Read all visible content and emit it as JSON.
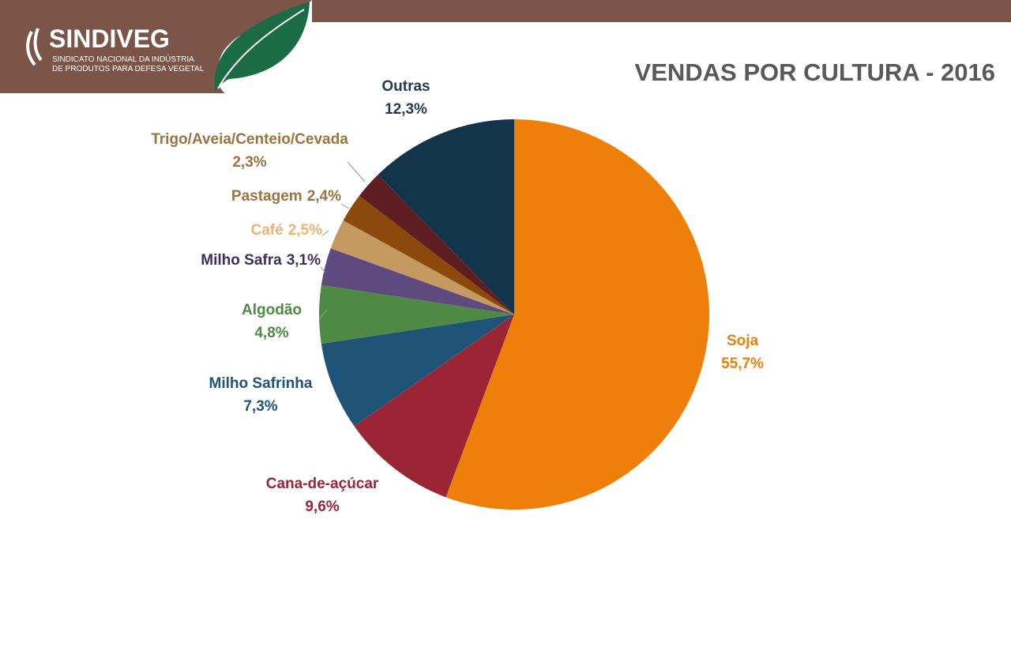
{
  "header": {
    "logo": "SINDIVEG",
    "logo_line1": "SINDICATO NACIONAL DA INDÚSTRIA",
    "logo_line2": "DE PRODUTOS PARA DEFESA VEGETAL"
  },
  "chart_data": {
    "type": "pie",
    "title": "VENDAS POR CULTURA - 2016",
    "categories": [
      "Soja",
      "Cana-de-açúcar",
      "Milho Safrinha",
      "Algodão",
      "Milho Safra",
      "Café",
      "Pastagem",
      "Trigo/Aveia/Centeio/Cevada",
      "Outras"
    ],
    "values": [
      55.7,
      9.6,
      7.3,
      4.8,
      3.1,
      2.5,
      2.4,
      2.3,
      12.3
    ],
    "value_labels": [
      "55,7%",
      "9,6%",
      "7,3%",
      "4,8%",
      "3,1%",
      "2,5%",
      "2,4%",
      "2,3%",
      "12,3%"
    ],
    "colors": [
      "#ee7f0b",
      "#9b2535",
      "#1f5478",
      "#4e8a44",
      "#5e4a7c",
      "#c49a60",
      "#8b4a0b",
      "#5e1e22",
      "#13344b"
    ]
  }
}
